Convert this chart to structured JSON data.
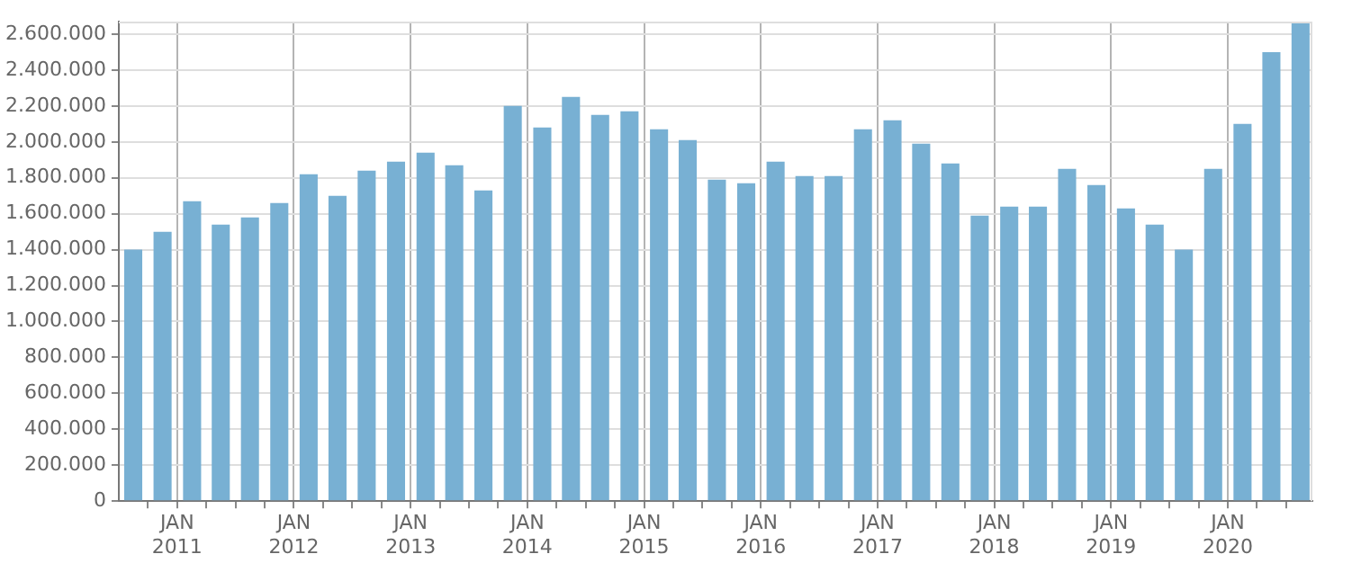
{
  "chart_data": {
    "type": "bar",
    "color": "#78b0d3",
    "x": [
      "2010-08-16",
      "2010-11-16",
      "2011-02-16",
      "2011-05-16",
      "2011-08-16",
      "2011-11-16",
      "2012-02-16",
      "2012-05-16",
      "2012-08-16",
      "2012-11-16",
      "2013-02-16",
      "2013-05-16",
      "2013-08-16",
      "2013-11-16",
      "2014-02-16",
      "2014-05-16",
      "2014-08-16",
      "2014-11-16",
      "2015-02-16",
      "2015-05-16",
      "2015-08-16",
      "2015-11-16",
      "2016-02-16",
      "2016-05-16",
      "2016-08-16",
      "2016-11-16",
      "2017-02-16",
      "2017-05-16",
      "2017-08-16",
      "2017-11-16",
      "2018-02-16",
      "2018-05-16",
      "2018-08-16",
      "2018-11-16",
      "2019-02-16",
      "2019-05-16",
      "2019-08-16",
      "2019-11-16",
      "2020-02-16",
      "2020-05-16",
      "2020-08-16"
    ],
    "values": [
      1400000,
      1500000,
      1670000,
      1540000,
      1580000,
      1660000,
      1820000,
      1700000,
      1840000,
      1890000,
      1940000,
      1870000,
      1730000,
      2200000,
      2080000,
      2250000,
      2150000,
      2170000,
      2070000,
      2010000,
      1790000,
      1770000,
      1890000,
      1810000,
      1810000,
      2070000,
      2120000,
      1990000,
      1880000,
      1590000,
      1640000,
      1640000,
      1850000,
      1760000,
      1630000,
      1540000,
      1400000,
      1850000,
      2100000,
      2500000,
      2660000
    ],
    "xlim": [
      "2010-07-01",
      "2020-09-22"
    ],
    "xticks": [
      {
        "value": "2010-10-01",
        "label": null
      },
      {
        "value": "2011-01-01",
        "label": "JAN\n2011"
      },
      {
        "value": "2011-04-01",
        "label": null
      },
      {
        "value": "2011-07-01",
        "label": null
      },
      {
        "value": "2011-10-01",
        "label": null
      },
      {
        "value": "2012-01-01",
        "label": "JAN\n2012"
      },
      {
        "value": "2012-04-01",
        "label": null
      },
      {
        "value": "2012-07-01",
        "label": null
      },
      {
        "value": "2012-10-01",
        "label": null
      },
      {
        "value": "2013-01-01",
        "label": "JAN\n2013"
      },
      {
        "value": "2013-04-01",
        "label": null
      },
      {
        "value": "2013-07-01",
        "label": null
      },
      {
        "value": "2013-10-01",
        "label": null
      },
      {
        "value": "2014-01-01",
        "label": "JAN\n2014"
      },
      {
        "value": "2014-04-01",
        "label": null
      },
      {
        "value": "2014-07-01",
        "label": null
      },
      {
        "value": "2014-10-01",
        "label": null
      },
      {
        "value": "2015-01-01",
        "label": "JAN\n2015"
      },
      {
        "value": "2015-04-01",
        "label": null
      },
      {
        "value": "2015-07-01",
        "label": null
      },
      {
        "value": "2015-10-01",
        "label": null
      },
      {
        "value": "2016-01-01",
        "label": "JAN\n2016"
      },
      {
        "value": "2016-04-01",
        "label": null
      },
      {
        "value": "2016-07-01",
        "label": null
      },
      {
        "value": "2016-10-01",
        "label": null
      },
      {
        "value": "2017-01-01",
        "label": "JAN\n2017"
      },
      {
        "value": "2017-04-01",
        "label": null
      },
      {
        "value": "2017-07-01",
        "label": null
      },
      {
        "value": "2017-10-01",
        "label": null
      },
      {
        "value": "2018-01-01",
        "label": "JAN\n2018"
      },
      {
        "value": "2018-04-01",
        "label": null
      },
      {
        "value": "2018-07-01",
        "label": null
      },
      {
        "value": "2018-10-01",
        "label": null
      },
      {
        "value": "2019-01-01",
        "label": "JAN\n2019"
      },
      {
        "value": "2019-04-01",
        "label": null
      },
      {
        "value": "2019-07-01",
        "label": null
      },
      {
        "value": "2019-10-01",
        "label": null
      },
      {
        "value": "2020-01-01",
        "label": "JAN\n2020"
      },
      {
        "value": "2020-04-01",
        "label": null
      },
      {
        "value": "2020-07-01",
        "label": null
      }
    ],
    "ylim": [
      0,
      2670000
    ],
    "yticks": [
      {
        "value": 0,
        "label": "0"
      },
      {
        "value": 200000,
        "label": "200.000"
      },
      {
        "value": 400000,
        "label": "400.000"
      },
      {
        "value": 600000,
        "label": "600.000"
      },
      {
        "value": 800000,
        "label": "800.000"
      },
      {
        "value": 1000000,
        "label": "1.000.000"
      },
      {
        "value": 1200000,
        "label": "1.200.000"
      },
      {
        "value": 1400000,
        "label": "1.400.000"
      },
      {
        "value": 1600000,
        "label": "1.600.000"
      },
      {
        "value": 1800000,
        "label": "1.800.000"
      },
      {
        "value": 2000000,
        "label": "2.000.000"
      },
      {
        "value": 2200000,
        "label": "2.200.000"
      },
      {
        "value": 2400000,
        "label": "2.400.000"
      },
      {
        "value": 2600000,
        "label": "2.600.000"
      }
    ],
    "grid": true
  }
}
